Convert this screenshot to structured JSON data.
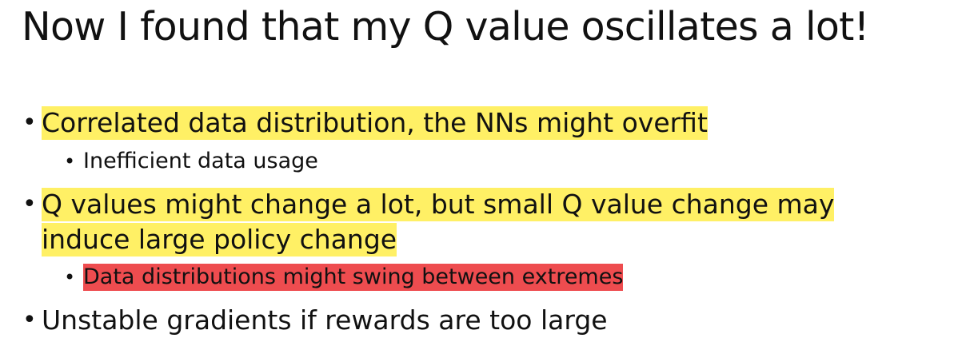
{
  "slide": {
    "title": "Now I found that my Q value oscillates a lot!",
    "bullets": [
      {
        "text": "Correlated data distribution, the NNs might overfit",
        "highlight": "#fff065",
        "sub": [
          {
            "text": "Inefficient data usage",
            "highlight": null
          }
        ]
      },
      {
        "line1": "Q values might change a lot, but small Q value change may",
        "line2": "induce large policy change",
        "highlight": "#fff065",
        "sub": [
          {
            "text": "Data distributions might swing between extremes",
            "highlight": "#ee4c4f"
          }
        ]
      },
      {
        "text": "Unstable gradients if rewards are too large",
        "highlight": null,
        "sub": []
      }
    ],
    "bullet_glyph": "•"
  }
}
